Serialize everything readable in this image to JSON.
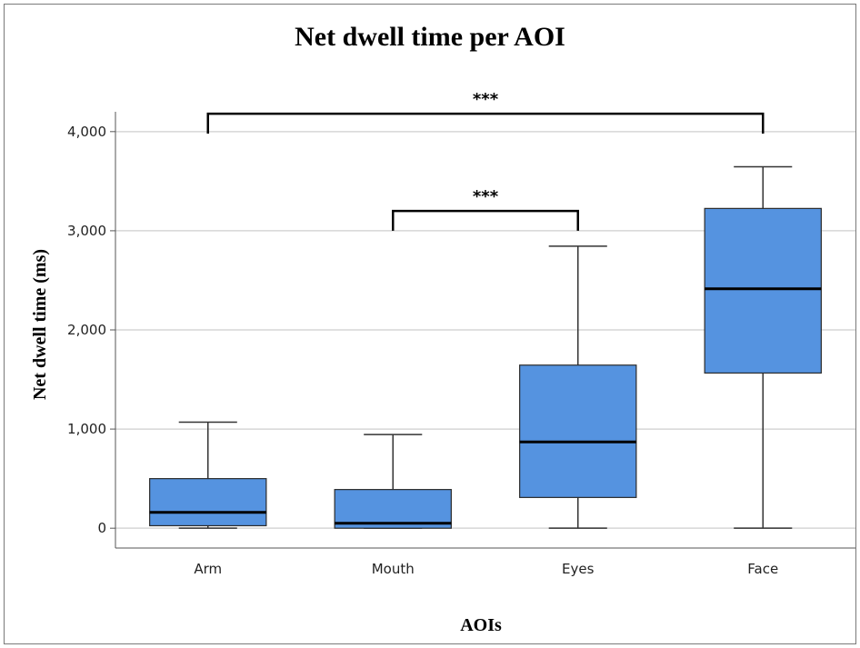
{
  "chart_data": {
    "type": "box",
    "title": "Net dwell time per AOI",
    "xlabel": "AOIs",
    "ylabel": "Net dwell time (ms)",
    "ylim": [
      -200,
      4200
    ],
    "yticks": [
      0,
      1000,
      2000,
      3000,
      4000
    ],
    "ytick_labels": [
      "0",
      "1,000",
      "2,000",
      "3,000",
      "4,000"
    ],
    "grid": "horizontal",
    "box_color": "#5593e0",
    "categories": [
      "Arm",
      "Mouth",
      "Eyes",
      "Face"
    ],
    "boxes": [
      {
        "category": "Arm",
        "min": 0,
        "q1": 25,
        "median": 160,
        "q3": 500,
        "max": 1070
      },
      {
        "category": "Mouth",
        "min": 0,
        "q1": 0,
        "median": 50,
        "q3": 390,
        "max": 945
      },
      {
        "category": "Eyes",
        "min": 0,
        "q1": 310,
        "median": 870,
        "q3": 1645,
        "max": 2845
      },
      {
        "category": "Face",
        "min": 0,
        "q1": 1565,
        "median": 2415,
        "q3": 3225,
        "max": 3645
      }
    ],
    "annotations": [
      {
        "label": "***",
        "from": "Arm",
        "to": "Face",
        "y": 4180,
        "drop": 200
      },
      {
        "label": "***",
        "from": "Mouth",
        "to": "Eyes",
        "y": 3200,
        "drop": 200
      }
    ]
  }
}
